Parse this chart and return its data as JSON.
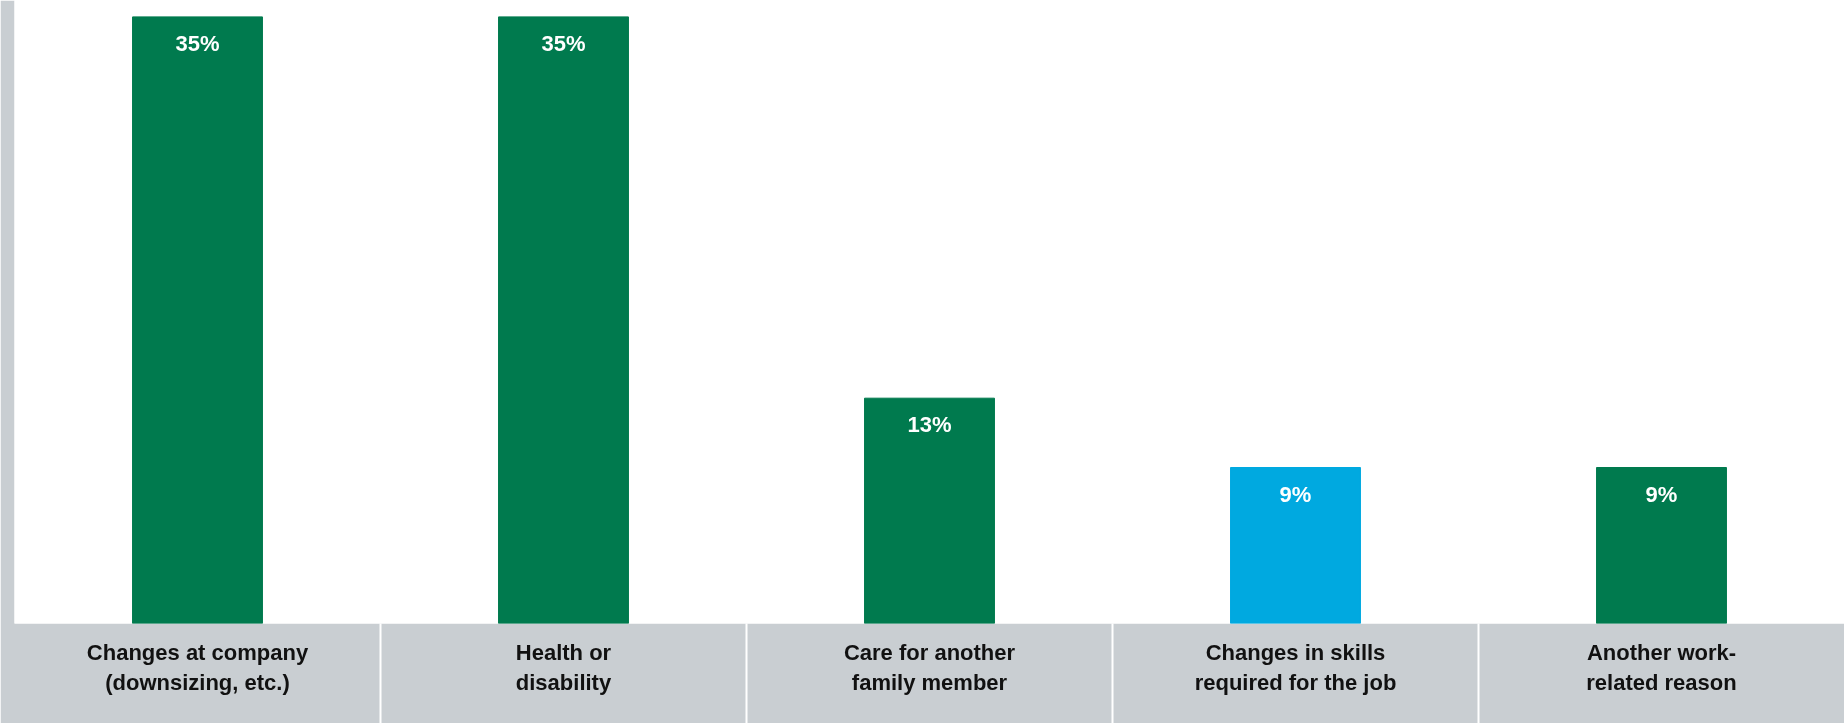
{
  "chart_data": {
    "type": "bar",
    "categories": [
      "Changes at company\n(downsizing, etc.)",
      "Health or\ndisability",
      "Care for another\nfamily member",
      "Changes in skills\nrequired for the job",
      "Another work-\nrelated reason"
    ],
    "values": [
      35,
      35,
      13,
      9,
      9
    ],
    "colors": [
      "#007a4e",
      "#007a4e",
      "#007a4e",
      "#00a9e0",
      "#007a4e"
    ],
    "value_labels": [
      "35%",
      "35%",
      "13%",
      "9%",
      "9%"
    ],
    "grid": false
  }
}
